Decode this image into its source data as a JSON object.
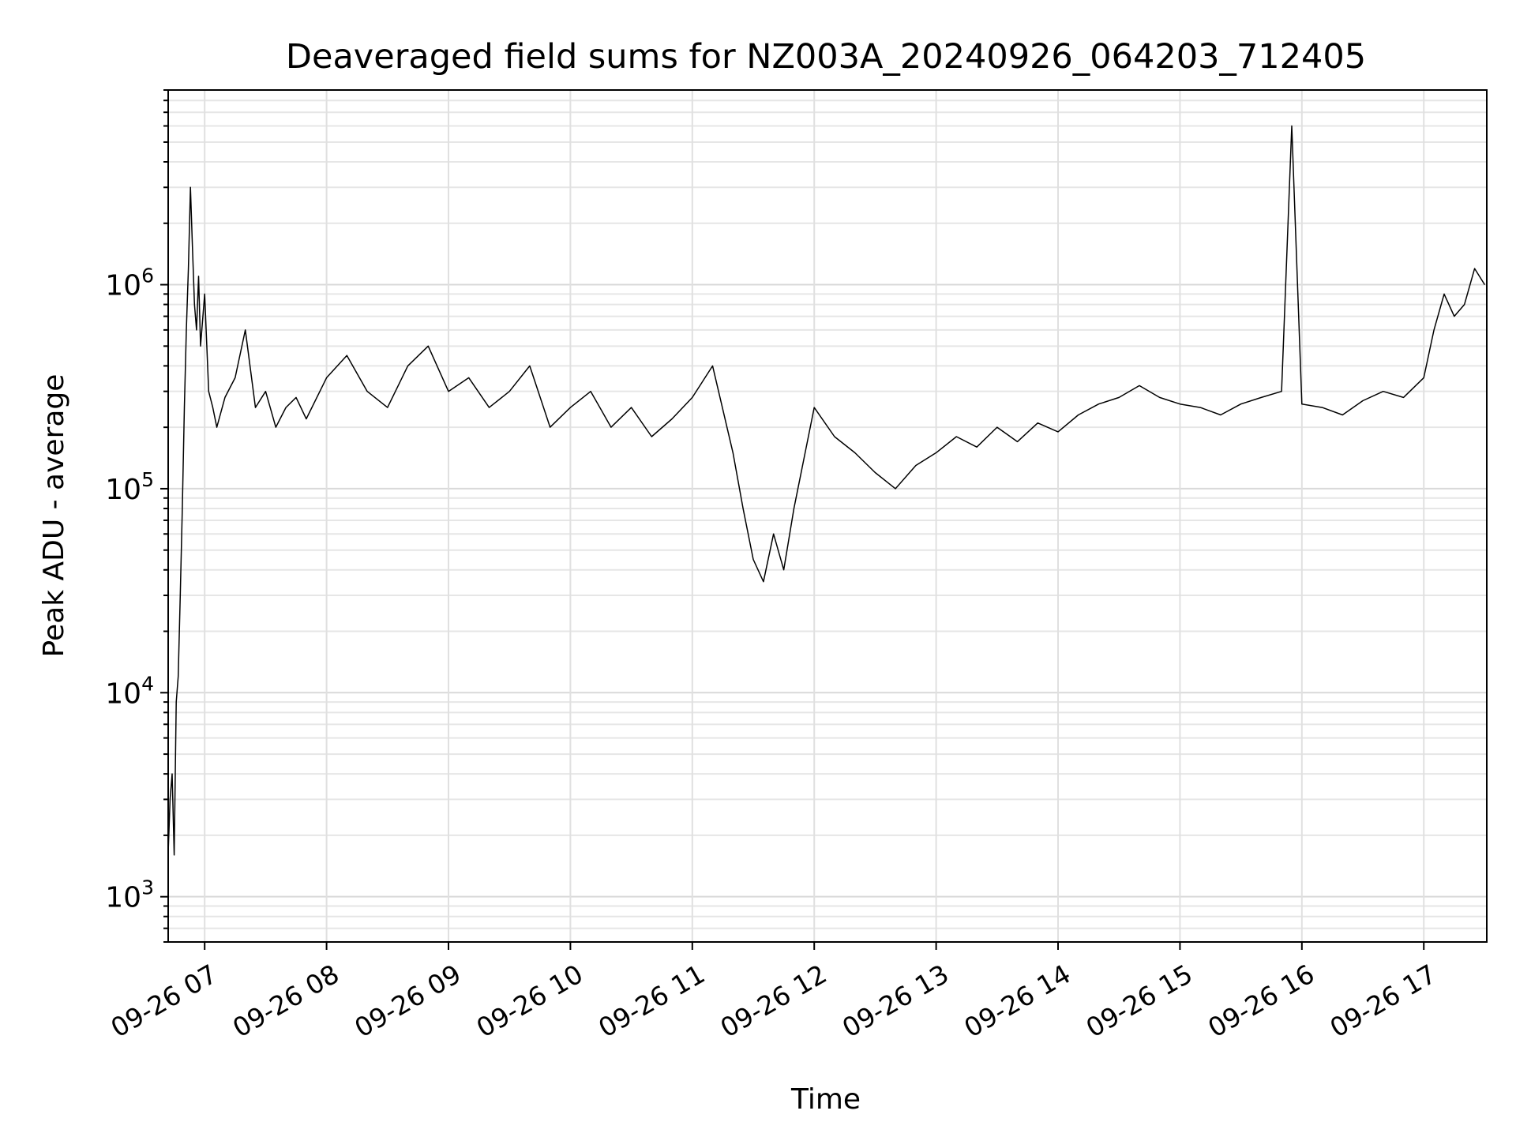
{
  "chart_data": {
    "type": "line",
    "title": "Deaveraged field sums for NZ003A_20240926_064203_712405",
    "xlabel": "Time",
    "ylabel": "Peak ADU - average",
    "xscale": "time",
    "yscale": "log",
    "xlim": [
      "2024-09-26T06:42:03",
      "2024-09-26T17:31:00"
    ],
    "ylim": [
      600,
      9000000
    ],
    "grid": true,
    "legend": "none",
    "line_color": "#000000",
    "x_ticks": [
      {
        "value": "2024-09-26T07:00",
        "label": "09-26 07"
      },
      {
        "value": "2024-09-26T08:00",
        "label": "09-26 08"
      },
      {
        "value": "2024-09-26T09:00",
        "label": "09-26 09"
      },
      {
        "value": "2024-09-26T10:00",
        "label": "09-26 10"
      },
      {
        "value": "2024-09-26T11:00",
        "label": "09-26 11"
      },
      {
        "value": "2024-09-26T12:00",
        "label": "09-26 12"
      },
      {
        "value": "2024-09-26T13:00",
        "label": "09-26 13"
      },
      {
        "value": "2024-09-26T14:00",
        "label": "09-26 14"
      },
      {
        "value": "2024-09-26T15:00",
        "label": "09-26 15"
      },
      {
        "value": "2024-09-26T16:00",
        "label": "09-26 16"
      },
      {
        "value": "2024-09-26T17:00",
        "label": "09-26 17"
      }
    ],
    "y_ticks": [
      {
        "value": 1000,
        "base": "10",
        "exp": "3"
      },
      {
        "value": 10000,
        "base": "10",
        "exp": "4"
      },
      {
        "value": 100000,
        "base": "10",
        "exp": "5"
      },
      {
        "value": 1000000,
        "base": "10",
        "exp": "6"
      }
    ],
    "series": [
      {
        "x": [
          "2024-09-26T06:42",
          "2024-09-26T06:43",
          "2024-09-26T06:44",
          "2024-09-26T06:45",
          "2024-09-26T06:46",
          "2024-09-26T06:47",
          "2024-09-26T06:48",
          "2024-09-26T06:49",
          "2024-09-26T06:50",
          "2024-09-26T06:51",
          "2024-09-26T06:52",
          "2024-09-26T06:53",
          "2024-09-26T06:54",
          "2024-09-26T06:55",
          "2024-09-26T06:56",
          "2024-09-26T06:57",
          "2024-09-26T06:58",
          "2024-09-26T07:00",
          "2024-09-26T07:02",
          "2024-09-26T07:04",
          "2024-09-26T07:06",
          "2024-09-26T07:10",
          "2024-09-26T07:15",
          "2024-09-26T07:20",
          "2024-09-26T07:25",
          "2024-09-26T07:30",
          "2024-09-26T07:35",
          "2024-09-26T07:40",
          "2024-09-26T07:45",
          "2024-09-26T07:50",
          "2024-09-26T08:00",
          "2024-09-26T08:10",
          "2024-09-26T08:20",
          "2024-09-26T08:30",
          "2024-09-26T08:40",
          "2024-09-26T08:50",
          "2024-09-26T09:00",
          "2024-09-26T09:10",
          "2024-09-26T09:20",
          "2024-09-26T09:30",
          "2024-09-26T09:40",
          "2024-09-26T09:50",
          "2024-09-26T10:00",
          "2024-09-26T10:10",
          "2024-09-26T10:20",
          "2024-09-26T10:30",
          "2024-09-26T10:40",
          "2024-09-26T10:50",
          "2024-09-26T11:00",
          "2024-09-26T11:10",
          "2024-09-26T11:20",
          "2024-09-26T11:25",
          "2024-09-26T11:30",
          "2024-09-26T11:35",
          "2024-09-26T11:40",
          "2024-09-26T11:45",
          "2024-09-26T11:50",
          "2024-09-26T12:00",
          "2024-09-26T12:10",
          "2024-09-26T12:20",
          "2024-09-26T12:30",
          "2024-09-26T12:40",
          "2024-09-26T12:50",
          "2024-09-26T13:00",
          "2024-09-26T13:10",
          "2024-09-26T13:20",
          "2024-09-26T13:30",
          "2024-09-26T13:40",
          "2024-09-26T13:50",
          "2024-09-26T14:00",
          "2024-09-26T14:10",
          "2024-09-26T14:20",
          "2024-09-26T14:30",
          "2024-09-26T14:40",
          "2024-09-26T14:50",
          "2024-09-26T15:00",
          "2024-09-26T15:10",
          "2024-09-26T15:20",
          "2024-09-26T15:30",
          "2024-09-26T15:40",
          "2024-09-26T15:50",
          "2024-09-26T15:55",
          "2024-09-26T16:00",
          "2024-09-26T16:10",
          "2024-09-26T16:20",
          "2024-09-26T16:30",
          "2024-09-26T16:40",
          "2024-09-26T16:50",
          "2024-09-26T17:00",
          "2024-09-26T17:05",
          "2024-09-26T17:10",
          "2024-09-26T17:15",
          "2024-09-26T17:20",
          "2024-09-26T17:25",
          "2024-09-26T17:30"
        ],
        "y": [
          1600,
          3000,
          4000,
          1600,
          9000,
          12000,
          30000,
          80000,
          250000,
          600000,
          1200000,
          3000000,
          1500000,
          800000,
          600000,
          1100000,
          500000,
          900000,
          300000,
          250000,
          200000,
          280000,
          350000,
          600000,
          250000,
          300000,
          200000,
          250000,
          280000,
          220000,
          350000,
          450000,
          300000,
          250000,
          400000,
          500000,
          300000,
          350000,
          250000,
          300000,
          400000,
          200000,
          250000,
          300000,
          200000,
          250000,
          180000,
          220000,
          280000,
          400000,
          150000,
          80000,
          45000,
          35000,
          60000,
          40000,
          80000,
          250000,
          180000,
          150000,
          120000,
          100000,
          130000,
          150000,
          180000,
          160000,
          200000,
          170000,
          210000,
          190000,
          230000,
          260000,
          280000,
          320000,
          280000,
          260000,
          250000,
          230000,
          260000,
          280000,
          300000,
          6000000,
          260000,
          250000,
          230000,
          270000,
          300000,
          280000,
          350000,
          600000,
          900000,
          700000,
          800000,
          1200000,
          1000000
        ]
      }
    ]
  }
}
